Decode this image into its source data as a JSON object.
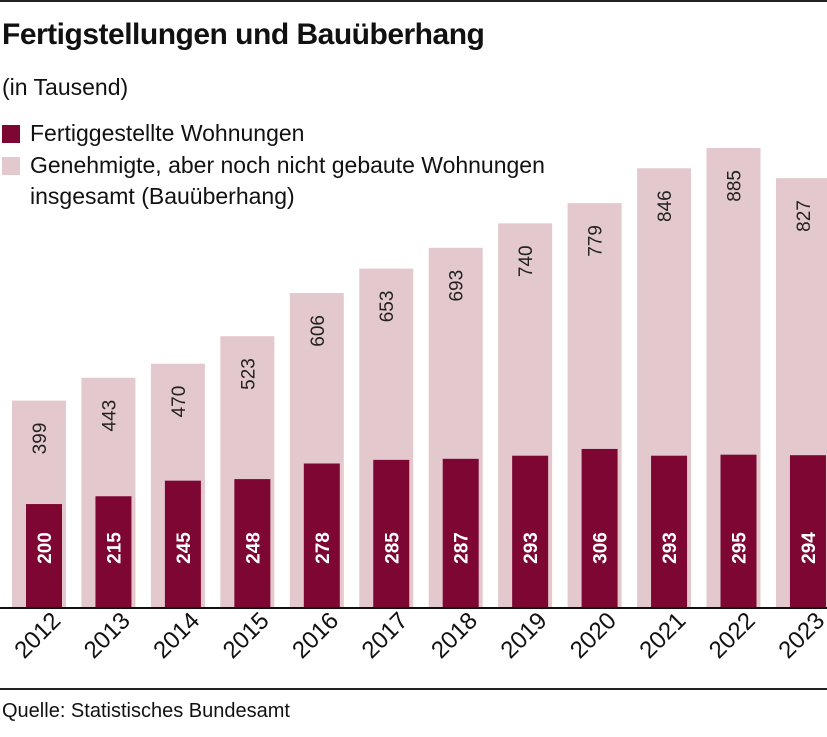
{
  "header": {
    "title": "Fertigstellungen und Bauüberhang",
    "subtitle": "(in Tausend)"
  },
  "legend": [
    {
      "label": "Fertiggestellte Wohnungen",
      "color": "#7d0633"
    },
    {
      "label": "Genehmigte, aber noch nicht gebaute Wohnungen insgesamt (Bauüberhang)",
      "color": "#e3c9cd"
    }
  ],
  "footer": {
    "source": "Quelle: Statistisches Bundesamt"
  },
  "chart_data": {
    "type": "bar",
    "categories": [
      "2012",
      "2013",
      "2014",
      "2015",
      "2016",
      "2017",
      "2018",
      "2019",
      "2020",
      "2021",
      "2022",
      "2023"
    ],
    "series": [
      {
        "name": "Genehmigte, aber noch nicht gebaute Wohnungen insgesamt (Bauüberhang)",
        "values": [
          399,
          443,
          470,
          523,
          606,
          653,
          693,
          740,
          779,
          846,
          885,
          827
        ],
        "color": "#e3c9cd"
      },
      {
        "name": "Fertiggestellte Wohnungen",
        "values": [
          200,
          215,
          245,
          248,
          278,
          285,
          287,
          293,
          306,
          293,
          295,
          294
        ],
        "color": "#7d0633"
      }
    ],
    "ylim": [
      0,
      885
    ],
    "grid": false,
    "legend_position": "top-left",
    "title": "Fertigstellungen und Bauüberhang",
    "subtitle": "(in Tausend)",
    "xlabel": "",
    "ylabel": ""
  }
}
